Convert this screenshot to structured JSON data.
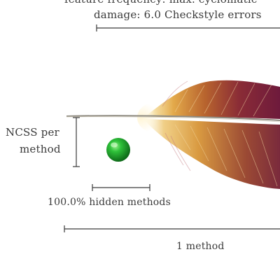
{
  "labels": {
    "header_line1": "feature frequency: max. cyclomatic",
    "header_line2": "damage: 6.0 Checkstyle errors",
    "metric_ncss_line1": "NCSS per",
    "metric_ncss_line2": "method",
    "hidden_methods": "100.0% hidden methods",
    "method_count": "1 method"
  },
  "colors": {
    "ink": "#3a3a3a",
    "ball": "#1fa62c",
    "feather_dark": "#7a1e3a",
    "feather_mid": "#b4552f",
    "feather_light": "#e3b14f"
  }
}
